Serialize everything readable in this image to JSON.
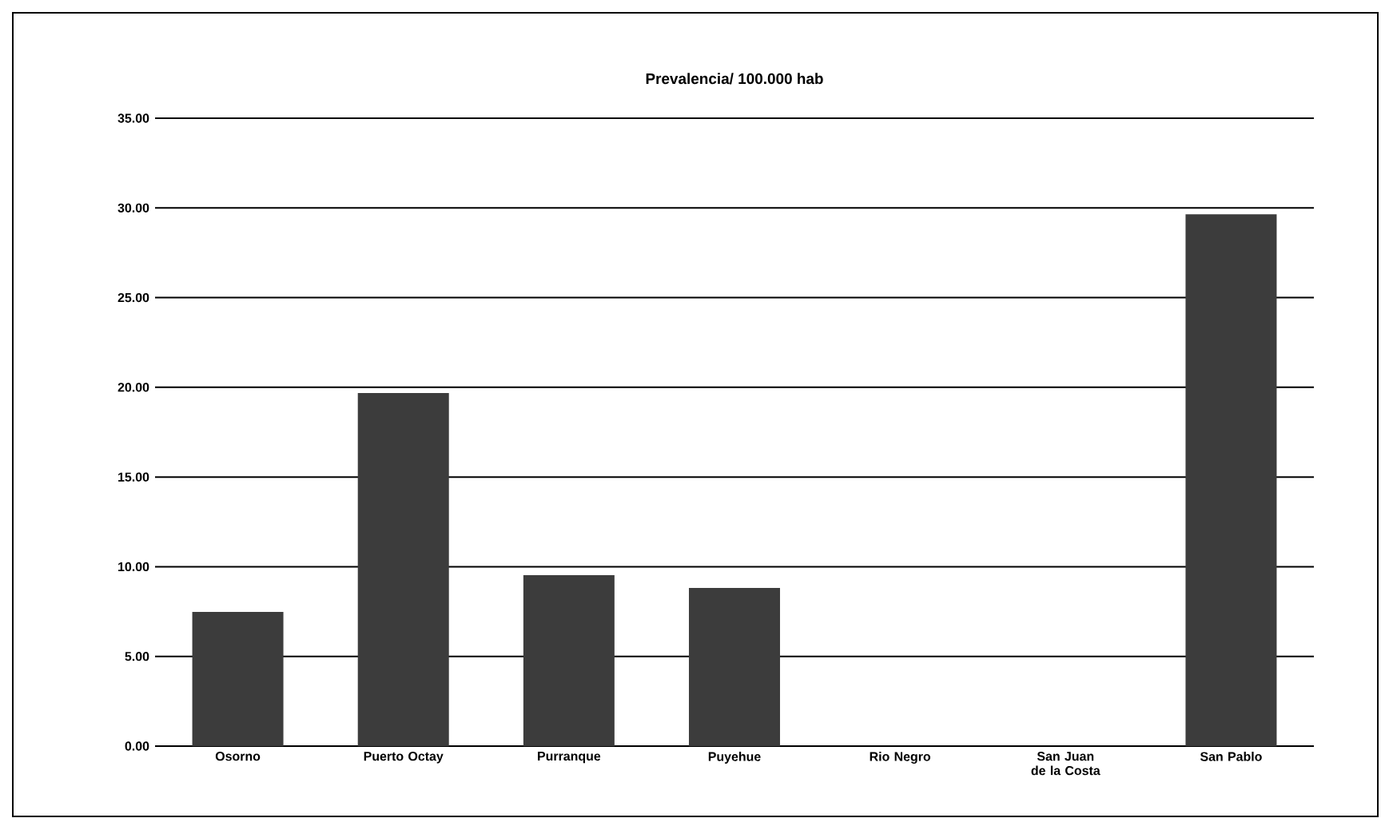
{
  "chart_data": {
    "type": "bar",
    "title": "Prevalencia/ 100.000 hab",
    "categories": [
      "Osorno",
      "Puerto Octay",
      "Purranque",
      "Puyehue",
      "Rio Negro",
      "San Juan de la Costa",
      "San Pablo"
    ],
    "values": [
      7.48,
      19.68,
      9.53,
      8.82,
      0,
      0,
      29.65
    ],
    "color": "#3c3c3c",
    "ylim": [
      0,
      35
    ],
    "yticks": [
      {
        "value": 0,
        "label": "0.00"
      },
      {
        "value": 5,
        "label": "5.00"
      },
      {
        "value": 10,
        "label": "10.00"
      },
      {
        "value": 15,
        "label": "15.00"
      },
      {
        "value": 20,
        "label": "20.00"
      },
      {
        "value": 25,
        "label": "25.00"
      },
      {
        "value": 30,
        "label": "30.00"
      },
      {
        "value": 35,
        "label": "35.00"
      }
    ],
    "grid": "y"
  }
}
